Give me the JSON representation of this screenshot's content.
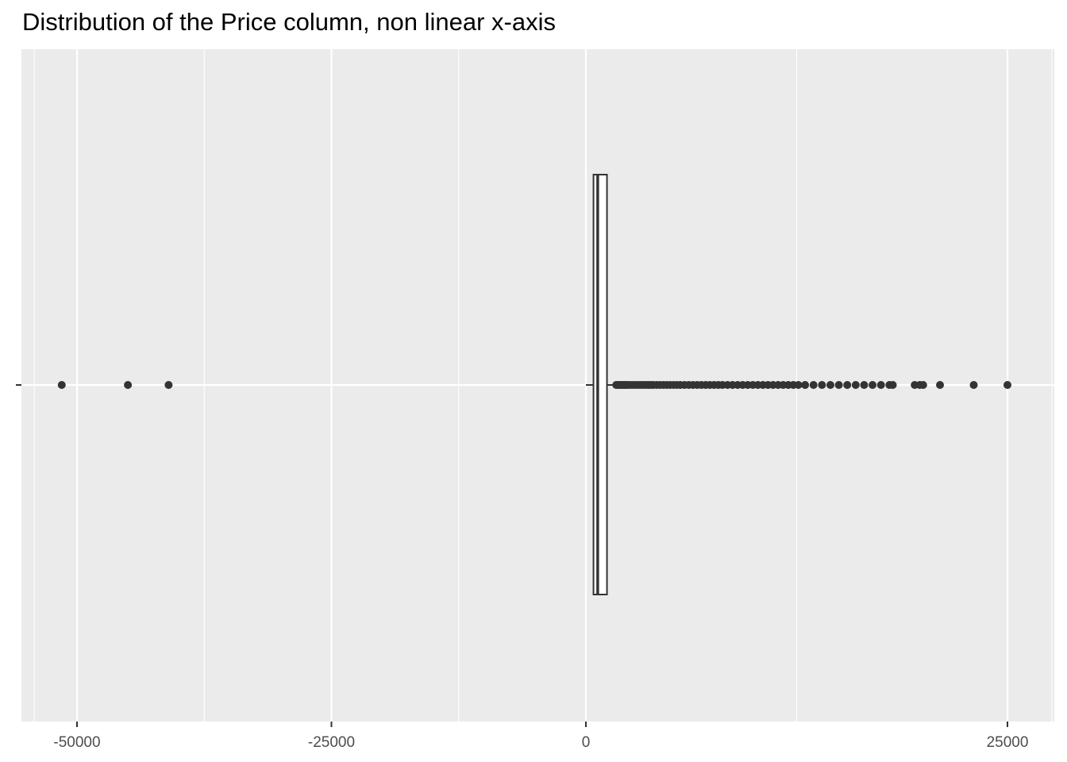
{
  "chart_data": {
    "type": "boxplot",
    "title": "Distribution of the Price column, non linear x-axis",
    "xlabel": "",
    "ylabel": "",
    "x_scale": "nonlinear (pseudo-log / signed square-root style)",
    "xlim": [
      -60000,
      30000
    ],
    "x_ticks": [
      -50000,
      -25000,
      0,
      25000
    ],
    "x_tick_labels": [
      "-50000",
      "-25000",
      "0",
      "25000"
    ],
    "x_minor_ticks": [
      -37500,
      -12500,
      12500
    ],
    "grid": true,
    "legend": "none",
    "box": {
      "whisker_low": 0,
      "q1": 450,
      "median": 700,
      "q3": 1250,
      "whisker_high": 1700
    },
    "outliers_low": [
      -51500,
      -45000,
      -41000
    ],
    "outliers_high": [
      1800,
      1900,
      2000,
      2100,
      2200,
      2300,
      2400,
      2500,
      2650,
      2800,
      2950,
      3100,
      3250,
      3400,
      3550,
      3700,
      3850,
      4000,
      4200,
      4400,
      4600,
      4800,
      5000,
      5200,
      5400,
      5600,
      5850,
      6100,
      6350,
      6600,
      6850,
      7100,
      7350,
      7600,
      7850,
      8100,
      8400,
      8700,
      9000,
      9300,
      9600,
      9900,
      10200,
      10500,
      10800,
      11100,
      11400,
      11700,
      12000,
      12300,
      12600,
      13000,
      13500,
      14000,
      14500,
      15000,
      15500,
      16000,
      16500,
      17000,
      17500,
      18000,
      18200,
      19500,
      19800,
      20000,
      21000,
      23000,
      25000
    ],
    "colors": {
      "panel": "#EBEBEB",
      "grid": "#FFFFFF",
      "box_line": "#333333",
      "box_fill": "#FFFFFF",
      "points": "#333333",
      "tick_text": "#4D4D4D"
    }
  }
}
